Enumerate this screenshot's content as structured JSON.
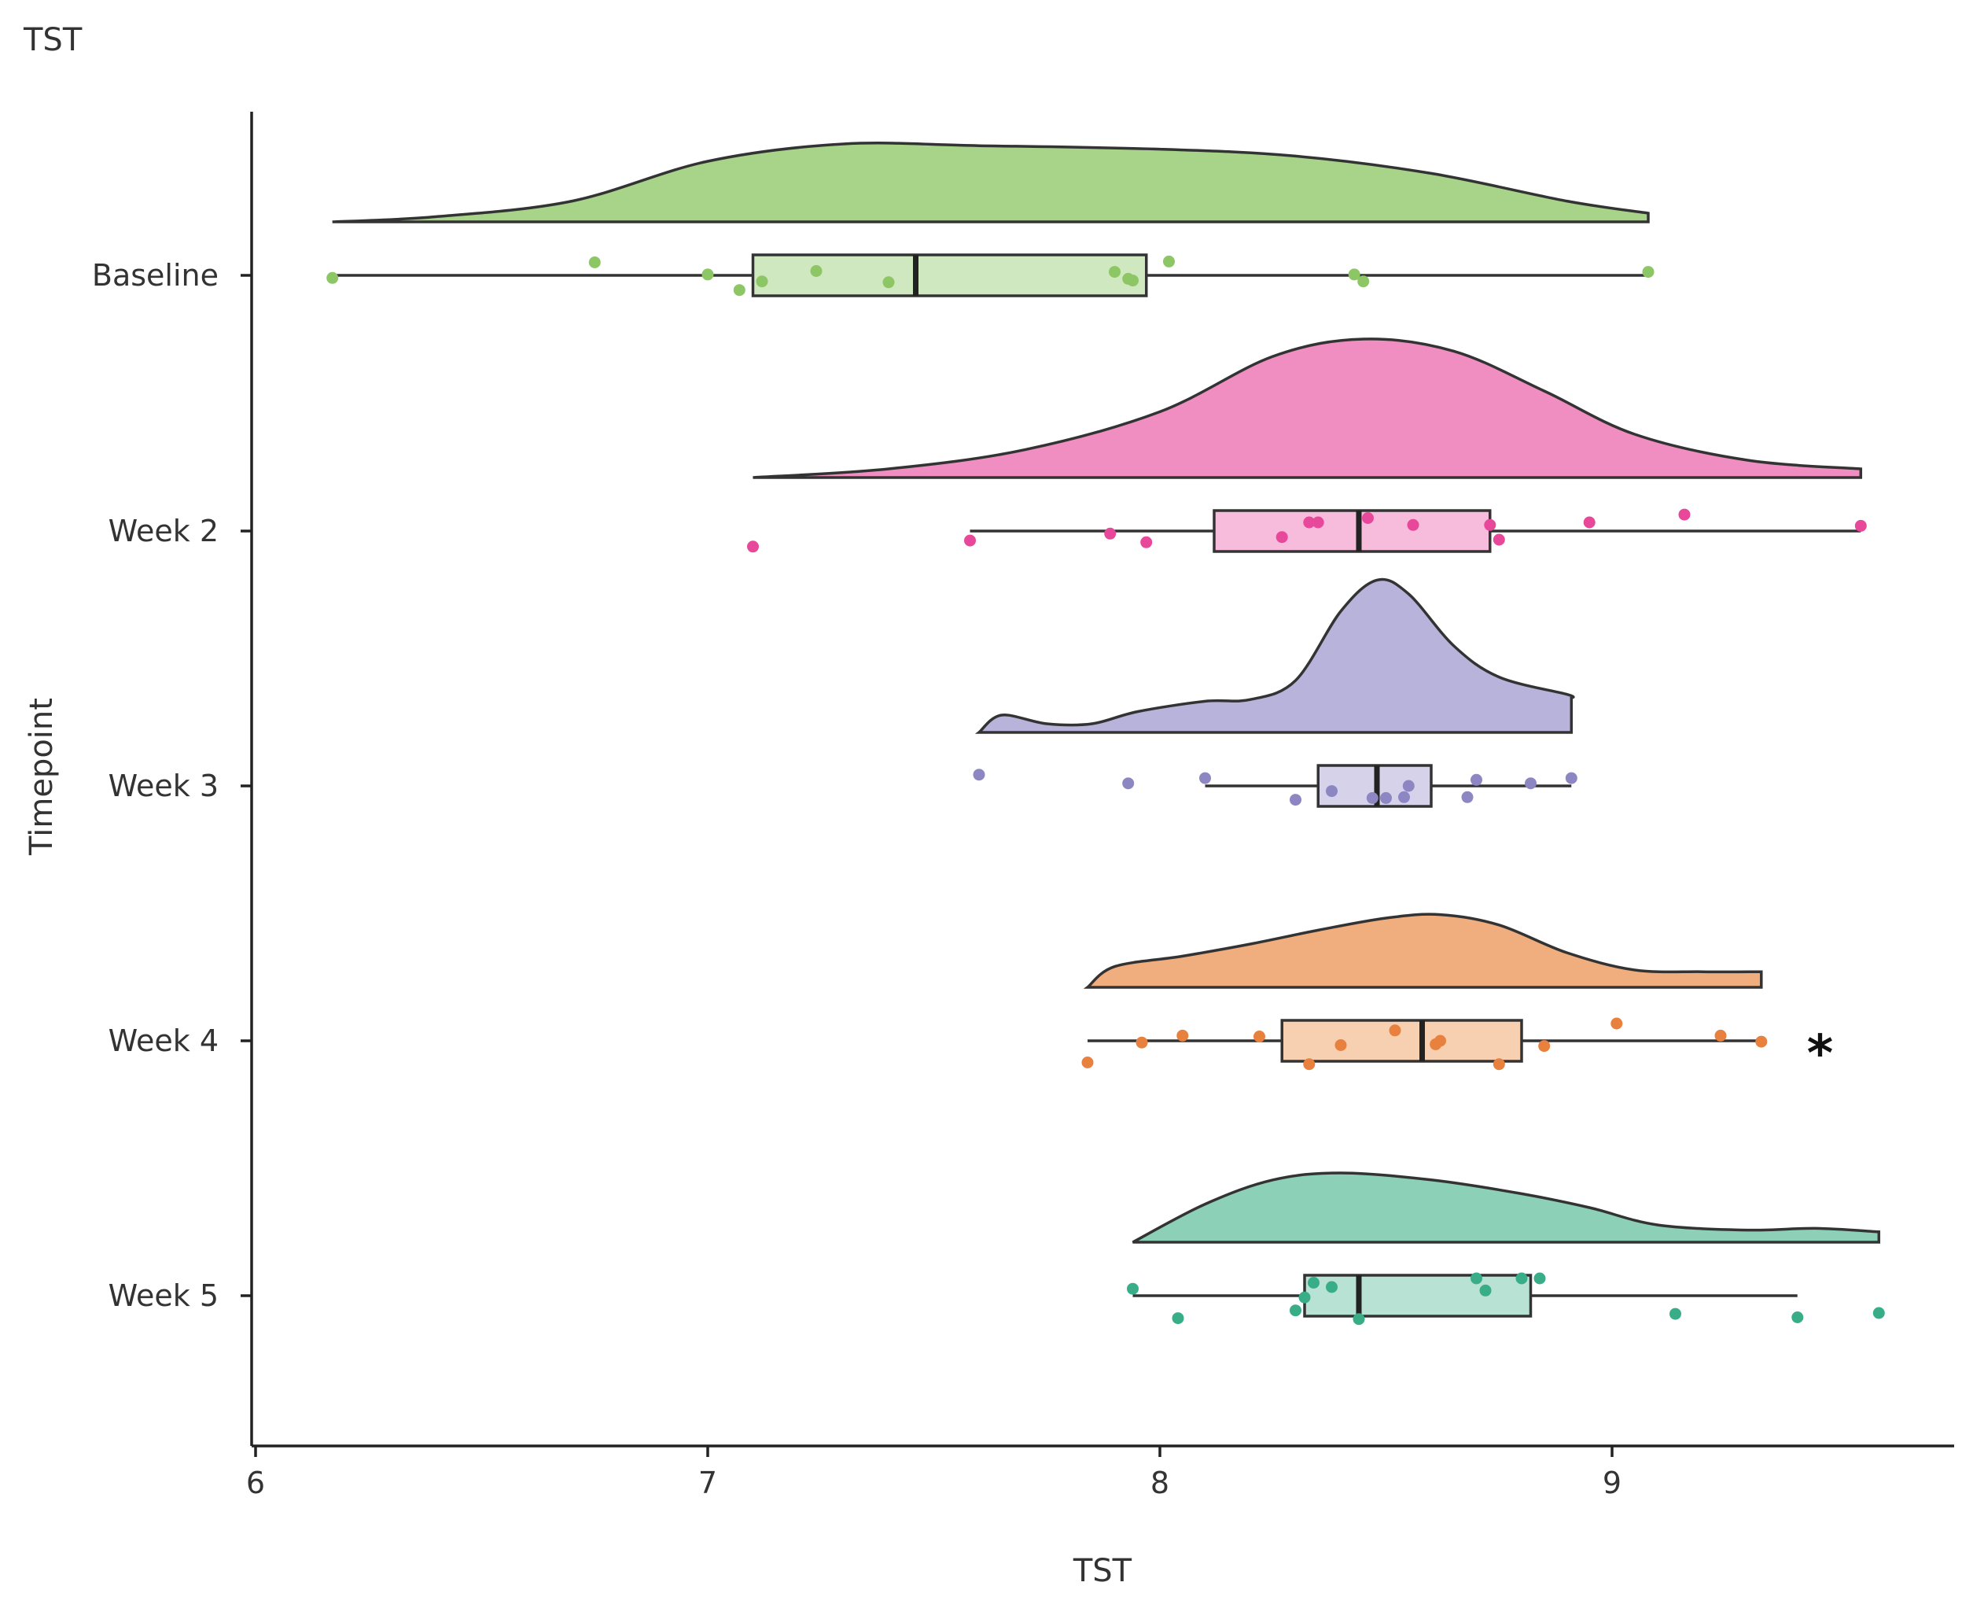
{
  "corner_title": "TST",
  "chart_data": {
    "type": "raincloud",
    "orientation": "horizontal",
    "xlabel": "TST",
    "ylabel": "Timepoint",
    "xlim": [
      6,
      9.75
    ],
    "xticks": [
      6,
      7,
      8,
      9
    ],
    "grid": false,
    "legend": "none",
    "groups": [
      {
        "name": "Baseline",
        "color": "#8cc665",
        "fill": "#a8d48a",
        "box_fill": "#d0e8bf",
        "box": {
          "whisker_low": 6.17,
          "q1": 7.1,
          "median": 7.46,
          "q3": 7.97,
          "whisker_high": 9.08
        },
        "density": [
          [
            6.17,
            0.0
          ],
          [
            6.4,
            0.03
          ],
          [
            6.7,
            0.12
          ],
          [
            7.0,
            0.35
          ],
          [
            7.3,
            0.45
          ],
          [
            7.6,
            0.44
          ],
          [
            8.0,
            0.42
          ],
          [
            8.3,
            0.38
          ],
          [
            8.6,
            0.28
          ],
          [
            8.9,
            0.12
          ],
          [
            9.08,
            0.05
          ]
        ],
        "points": [
          [
            6.17,
            -0.03
          ],
          [
            6.75,
            0.15
          ],
          [
            7.0,
            0.01
          ],
          [
            7.07,
            -0.17
          ],
          [
            7.12,
            -0.07
          ],
          [
            7.24,
            0.05
          ],
          [
            7.4,
            -0.08
          ],
          [
            7.9,
            0.04
          ],
          [
            7.93,
            -0.04
          ],
          [
            7.94,
            -0.06
          ],
          [
            8.02,
            0.16
          ],
          [
            8.43,
            0.01
          ],
          [
            8.45,
            -0.07
          ],
          [
            9.08,
            0.04
          ]
        ]
      },
      {
        "name": "Week 2",
        "color": "#e7489a",
        "fill": "#f08ec2",
        "box_fill": "#f7bcdb",
        "box": {
          "whisker_low": 7.58,
          "q1": 8.12,
          "median": 8.44,
          "q3": 8.73,
          "whisker_high": 9.55
        },
        "density": [
          [
            7.1,
            0.0
          ],
          [
            7.4,
            0.05
          ],
          [
            7.7,
            0.16
          ],
          [
            8.0,
            0.38
          ],
          [
            8.25,
            0.7
          ],
          [
            8.45,
            0.8
          ],
          [
            8.65,
            0.73
          ],
          [
            8.85,
            0.5
          ],
          [
            9.05,
            0.25
          ],
          [
            9.3,
            0.1
          ],
          [
            9.55,
            0.05
          ]
        ],
        "points": [
          [
            7.1,
            -0.18
          ],
          [
            7.58,
            -0.11
          ],
          [
            7.89,
            -0.03
          ],
          [
            7.97,
            -0.13
          ],
          [
            8.27,
            -0.07
          ],
          [
            8.33,
            0.1
          ],
          [
            8.35,
            0.1
          ],
          [
            8.46,
            0.15
          ],
          [
            8.56,
            0.07
          ],
          [
            8.73,
            0.07
          ],
          [
            8.75,
            -0.1
          ],
          [
            8.95,
            0.1
          ],
          [
            9.16,
            0.19
          ],
          [
            9.55,
            0.06
          ]
        ]
      },
      {
        "name": "Week 3",
        "color": "#8c86c2",
        "fill": "#b8b3da",
        "box_fill": "#d5d2ea",
        "box": {
          "whisker_low": 8.1,
          "q1": 8.35,
          "median": 8.48,
          "q3": 8.6,
          "whisker_high": 8.91
        },
        "density": [
          [
            7.6,
            0.0
          ],
          [
            7.65,
            0.1
          ],
          [
            7.75,
            0.05
          ],
          [
            7.85,
            0.05
          ],
          [
            7.95,
            0.12
          ],
          [
            8.1,
            0.18
          ],
          [
            8.2,
            0.19
          ],
          [
            8.3,
            0.3
          ],
          [
            8.4,
            0.7
          ],
          [
            8.48,
            0.88
          ],
          [
            8.55,
            0.8
          ],
          [
            8.65,
            0.5
          ],
          [
            8.75,
            0.32
          ],
          [
            8.9,
            0.22
          ],
          [
            8.91,
            0.2
          ]
        ],
        "points": [
          [
            7.6,
            0.13
          ],
          [
            7.93,
            0.03
          ],
          [
            8.1,
            0.09
          ],
          [
            8.3,
            -0.16
          ],
          [
            8.38,
            -0.06
          ],
          [
            8.47,
            -0.14
          ],
          [
            8.5,
            -0.14
          ],
          [
            8.54,
            -0.13
          ],
          [
            8.55,
            0.0
          ],
          [
            8.68,
            -0.13
          ],
          [
            8.7,
            0.07
          ],
          [
            8.82,
            0.03
          ],
          [
            8.91,
            0.09
          ]
        ]
      },
      {
        "name": "Week 4",
        "color": "#e8803e",
        "fill": "#f0ae7e",
        "box_fill": "#f7cfb1",
        "box": {
          "whisker_low": 7.84,
          "q1": 8.27,
          "median": 8.58,
          "q3": 8.8,
          "whisker_high": 9.33
        },
        "density": [
          [
            7.84,
            0.0
          ],
          [
            7.9,
            0.12
          ],
          [
            8.05,
            0.18
          ],
          [
            8.2,
            0.25
          ],
          [
            8.35,
            0.33
          ],
          [
            8.5,
            0.4
          ],
          [
            8.62,
            0.42
          ],
          [
            8.75,
            0.36
          ],
          [
            8.9,
            0.2
          ],
          [
            9.05,
            0.1
          ],
          [
            9.2,
            0.09
          ],
          [
            9.33,
            0.09
          ]
        ],
        "points": [
          [
            7.84,
            -0.25
          ],
          [
            7.96,
            -0.02
          ],
          [
            8.05,
            0.06
          ],
          [
            8.22,
            0.05
          ],
          [
            8.33,
            -0.27
          ],
          [
            8.4,
            -0.05
          ],
          [
            8.52,
            0.12
          ],
          [
            8.61,
            -0.04
          ],
          [
            8.62,
            0.0
          ],
          [
            8.75,
            -0.27
          ],
          [
            8.85,
            -0.06
          ],
          [
            9.01,
            0.2
          ],
          [
            9.24,
            0.06
          ],
          [
            9.33,
            -0.01
          ]
        ]
      },
      {
        "name": "Week 5",
        "color": "#39ad88",
        "fill": "#8dd0b8",
        "box_fill": "#b8e2d3",
        "box": {
          "whisker_low": 7.94,
          "q1": 8.32,
          "median": 8.44,
          "q3": 8.82,
          "whisker_high": 9.41
        },
        "density": [
          [
            7.94,
            0.0
          ],
          [
            8.1,
            0.22
          ],
          [
            8.25,
            0.36
          ],
          [
            8.4,
            0.4
          ],
          [
            8.6,
            0.36
          ],
          [
            8.8,
            0.28
          ],
          [
            8.95,
            0.2
          ],
          [
            9.1,
            0.1
          ],
          [
            9.3,
            0.07
          ],
          [
            9.45,
            0.08
          ],
          [
            9.59,
            0.06
          ]
        ],
        "points": [
          [
            7.94,
            0.08
          ],
          [
            8.04,
            -0.26
          ],
          [
            8.3,
            -0.17
          ],
          [
            8.32,
            -0.02
          ],
          [
            8.34,
            0.15
          ],
          [
            8.38,
            0.1
          ],
          [
            8.44,
            -0.27
          ],
          [
            8.7,
            0.2
          ],
          [
            8.72,
            0.06
          ],
          [
            8.8,
            0.2
          ],
          [
            8.84,
            0.2
          ],
          [
            9.14,
            -0.21
          ],
          [
            9.41,
            -0.25
          ],
          [
            9.59,
            -0.2
          ]
        ]
      }
    ],
    "annotations": [
      {
        "text": "*",
        "group": "Week 4",
        "x": 9.46
      }
    ]
  }
}
